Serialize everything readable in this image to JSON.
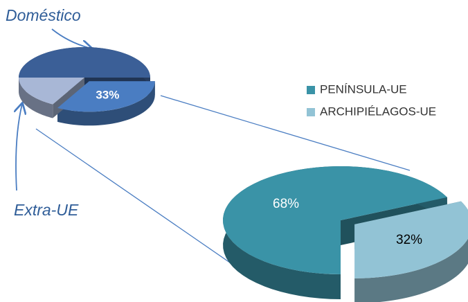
{
  "chart_data": [
    {
      "type": "pie",
      "categories": [
        "Doméstico",
        null,
        "Extra-UE"
      ],
      "values": [
        50,
        33,
        17
      ],
      "value_labels": [
        null,
        "33%",
        null
      ],
      "colors": [
        "#3b5f97",
        "#4a7dc2",
        "#a8b7d6"
      ]
    },
    {
      "type": "pie",
      "categories": [
        "PENÍNSULA-UE",
        "ARCHIPIÉLAGOS-UE"
      ],
      "values": [
        68,
        32
      ],
      "value_labels": [
        "68%",
        "32%"
      ],
      "colors": [
        "#3a93a7",
        "#92c3d5"
      ],
      "legend": "right"
    }
  ]
}
